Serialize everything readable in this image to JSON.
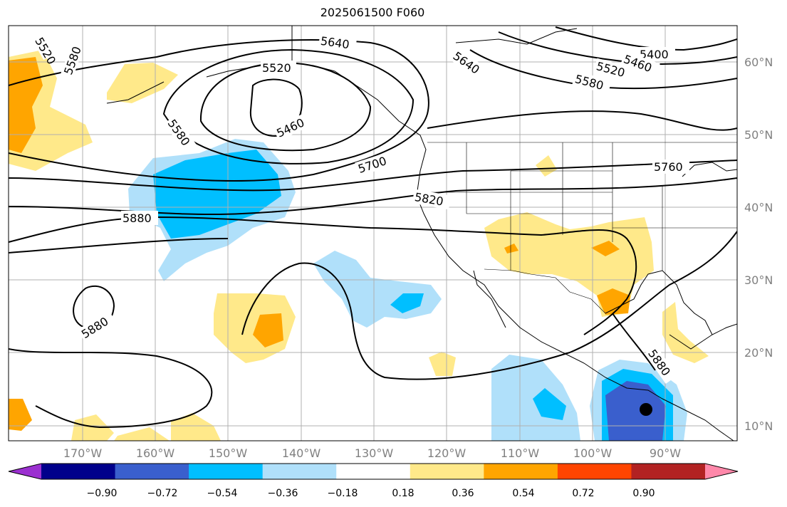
{
  "title": "2025061500 F060",
  "longitude_labels": [
    "170°W",
    "160°W",
    "150°W",
    "140°W",
    "130°W",
    "120°W",
    "110°W",
    "100°W",
    "90°W"
  ],
  "latitude_labels": [
    "60°N",
    "50°N",
    "40°N",
    "30°N",
    "20°N",
    "10°N"
  ],
  "contour_labels": [
    "5520",
    "5580",
    "5640",
    "5520",
    "5460",
    "5580",
    "5700",
    "5820",
    "5880",
    "5880",
    "5640",
    "5400",
    "5460",
    "5520",
    "5580",
    "5760",
    "5880"
  ],
  "colorbar": {
    "tick_labels": [
      "−0.90",
      "−0.72",
      "−0.54",
      "−0.36",
      "−0.18",
      "0.18",
      "0.36",
      "0.54",
      "0.72",
      "0.90"
    ],
    "colors": [
      "#9b30d0",
      "#00008b",
      "#3a5fcd",
      "#00bfff",
      "#b0e0fa",
      "#ffffff",
      "#ffe98a",
      "#ffa500",
      "#ff4500",
      "#b22222",
      "#ff88aa"
    ]
  },
  "marker": "black-dot"
}
